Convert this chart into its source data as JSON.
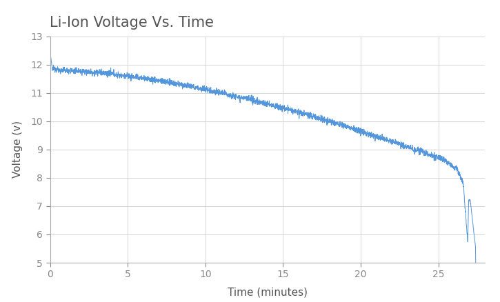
{
  "title": "Li-Ion Voltage Vs. Time",
  "xlabel": "Time (minutes)",
  "ylabel": "Voltage (v)",
  "xlim": [
    0,
    28.0
  ],
  "ylim": [
    5,
    13
  ],
  "xticks": [
    0,
    5,
    10,
    15,
    20,
    25
  ],
  "yticks": [
    5,
    6,
    7,
    8,
    9,
    10,
    11,
    12,
    13
  ],
  "line_color": "#4a90d9",
  "background_color": "#ffffff",
  "grid_color": "#d0d0d0",
  "title_color": "#555555",
  "axis_label_color": "#555555",
  "tick_color": "#888888",
  "title_fontsize": 15,
  "label_fontsize": 11,
  "tick_fontsize": 10,
  "duration_minutes": 27.4,
  "noise_amplitude": 0.055,
  "total_points": 2740
}
